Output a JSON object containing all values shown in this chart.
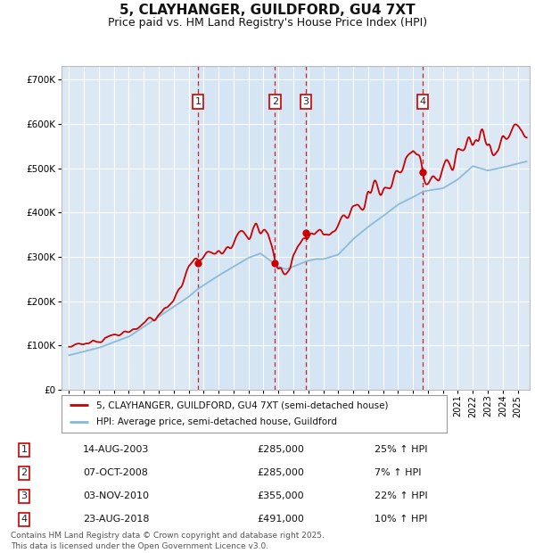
{
  "title": "5, CLAYHANGER, GUILDFORD, GU4 7XT",
  "subtitle": "Price paid vs. HM Land Registry's House Price Index (HPI)",
  "title_fontsize": 11,
  "subtitle_fontsize": 9,
  "bg_color": "#ffffff",
  "plot_bg_color": "#dce9f5",
  "grid_color": "#ffffff",
  "red_line_color": "#cc0000",
  "blue_line_color": "#88b8d8",
  "sale_points": [
    {
      "label": "1",
      "date_str": "14-AUG-2003",
      "year": 2003.62,
      "price": 285000,
      "pct": "25% ↑ HPI"
    },
    {
      "label": "2",
      "date_str": "07-OCT-2008",
      "year": 2008.77,
      "price": 285000,
      "pct": "7% ↑ HPI"
    },
    {
      "label": "3",
      "date_str": "03-NOV-2010",
      "year": 2010.84,
      "price": 355000,
      "pct": "22% ↑ HPI"
    },
    {
      "label": "4",
      "date_str": "23-AUG-2018",
      "year": 2018.65,
      "price": 491000,
      "pct": "10% ↑ HPI"
    }
  ],
  "legend_line1": "5, CLAYHANGER, GUILDFORD, GU4 7XT (semi-detached house)",
  "legend_line2": "HPI: Average price, semi-detached house, Guildford",
  "footer": "Contains HM Land Registry data © Crown copyright and database right 2025.\nThis data is licensed under the Open Government Licence v3.0.",
  "ylim": [
    0,
    730000
  ],
  "yticks": [
    0,
    100000,
    200000,
    300000,
    400000,
    500000,
    600000,
    700000
  ],
  "xlim_start": 1994.5,
  "xlim_end": 2025.8
}
